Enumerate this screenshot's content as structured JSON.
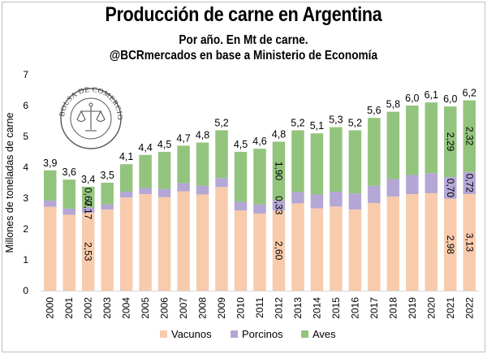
{
  "chart_data": {
    "type": "bar",
    "stacked": true,
    "title": "Producción de carne en Argentina",
    "subtitle": "Por año. En Mt de carne.",
    "source": "@BCRmercados en base a Ministerio de Economía",
    "ylabel": "Millones de toneladas de carne",
    "xlabel": "",
    "ylim": [
      0,
      7
    ],
    "yticks": [
      "0",
      "1",
      "2",
      "3",
      "4",
      "5",
      "6",
      "7"
    ],
    "grid": false,
    "legend_position": "bottom",
    "categories": [
      "2000",
      "2001",
      "2002",
      "2003",
      "2004",
      "2005",
      "2006",
      "2007",
      "2008",
      "2009",
      "2010",
      "2011",
      "2012",
      "2013",
      "2014",
      "2015",
      "2016",
      "2017",
      "2018",
      "2019",
      "2020",
      "2021",
      "2022"
    ],
    "series": [
      {
        "name": "Vacunos",
        "color": "#f8cbad",
        "values": [
          2.72,
          2.46,
          2.53,
          2.63,
          3.02,
          3.13,
          3.03,
          3.22,
          3.12,
          3.36,
          2.6,
          2.5,
          2.6,
          2.83,
          2.67,
          2.73,
          2.63,
          2.84,
          3.05,
          3.13,
          3.16,
          2.98,
          3.13
        ]
      },
      {
        "name": "Porcinos",
        "color": "#b4a7d6",
        "values": [
          0.2,
          0.2,
          0.17,
          0.17,
          0.19,
          0.2,
          0.27,
          0.27,
          0.28,
          0.29,
          0.28,
          0.3,
          0.33,
          0.37,
          0.45,
          0.48,
          0.52,
          0.56,
          0.57,
          0.62,
          0.65,
          0.7,
          0.72
        ]
      },
      {
        "name": "Aves",
        "color": "#93c47d",
        "values": [
          0.98,
          0.94,
          0.67,
          0.7,
          0.89,
          1.07,
          1.2,
          1.21,
          1.4,
          1.55,
          1.62,
          1.8,
          1.9,
          2.0,
          1.98,
          2.09,
          2.05,
          2.2,
          2.18,
          2.25,
          2.29,
          2.29,
          2.32
        ]
      }
    ],
    "total_labels": [
      "3,9",
      "3,6",
      "3,4",
      "3,5",
      "4,1",
      "4,4",
      "4,5",
      "4,7",
      "4,8",
      "5,2",
      "4,5",
      "4,6",
      "4,8",
      "5,2",
      "5,1",
      "5,3",
      "5,2",
      "5,6",
      "5,8",
      "6,0",
      "6,1",
      "6,0",
      "6,2"
    ],
    "segment_labels": [
      {
        "year_index": 2,
        "series": "Vacunos",
        "text": "2,53"
      },
      {
        "year_index": 2,
        "series": "Porcinos",
        "text": "0,17"
      },
      {
        "year_index": 2,
        "series": "Aves",
        "text": "0,67"
      },
      {
        "year_index": 12,
        "series": "Vacunos",
        "text": "2,60"
      },
      {
        "year_index": 12,
        "series": "Porcinos",
        "text": "0,33"
      },
      {
        "year_index": 12,
        "series": "Aves",
        "text": "1,90"
      },
      {
        "year_index": 21,
        "series": "Vacunos",
        "text": "2,98"
      },
      {
        "year_index": 21,
        "series": "Porcinos",
        "text": "0,70"
      },
      {
        "year_index": 21,
        "series": "Aves",
        "text": "2,29"
      },
      {
        "year_index": 22,
        "series": "Vacunos",
        "text": "3,13"
      },
      {
        "year_index": 22,
        "series": "Porcinos",
        "text": "0,72"
      },
      {
        "year_index": 22,
        "series": "Aves",
        "text": "2,32"
      }
    ]
  },
  "watermark": {
    "text": "BOLSA DE COMERCIO DE ROSARIO",
    "icon": "scales-of-justice-icon"
  }
}
